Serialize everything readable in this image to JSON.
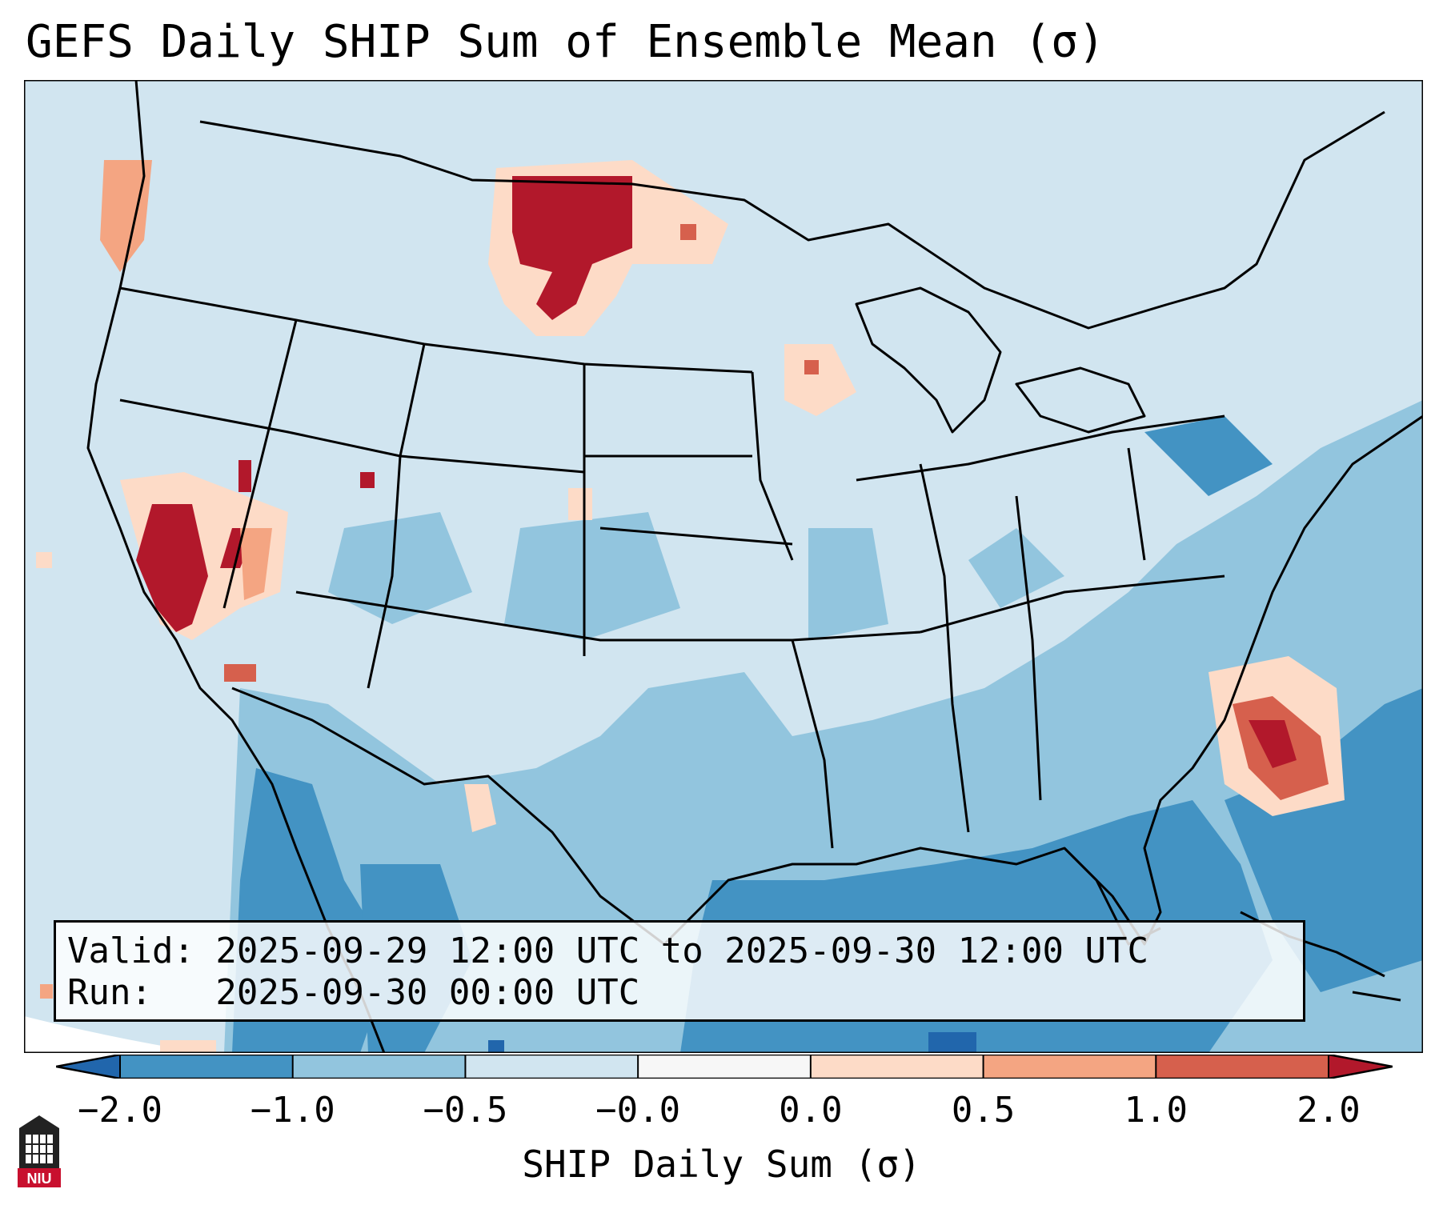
{
  "title": "GEFS Daily SHIP Sum of Ensemble Mean (σ)",
  "info": {
    "valid": "Valid: 2025-09-29 12:00 UTC to 2025-09-30 12:00 UTC",
    "run": "Run:   2025-09-30 00:00 UTC"
  },
  "colorbar": {
    "label": "SHIP Daily Sum (σ)",
    "ticks": [
      "−2.0",
      "−1.0",
      "−0.5",
      "−0.0",
      "0.0",
      "0.5",
      "1.0",
      "2.0"
    ],
    "bins": [
      {
        "range": "< −2.0",
        "color": "#2166ac"
      },
      {
        "range": "−2.0 to −1.0",
        "color": "#4393c3"
      },
      {
        "range": "−1.0 to −0.5",
        "color": "#92c5de"
      },
      {
        "range": "−0.5 to −0.0",
        "color": "#d1e5f0"
      },
      {
        "range": "−0.0 to 0.0",
        "color": "#f7f7f7"
      },
      {
        "range": "0.0 to 0.5",
        "color": "#fddbc7"
      },
      {
        "range": "0.5 to 1.0",
        "color": "#f4a582"
      },
      {
        "range": "1.0 to 2.0",
        "color": "#d6604d"
      },
      {
        "range": "> 2.0",
        "color": "#b2182b"
      }
    ]
  },
  "logo": {
    "text": "NIU",
    "color": "#c8102e"
  }
}
